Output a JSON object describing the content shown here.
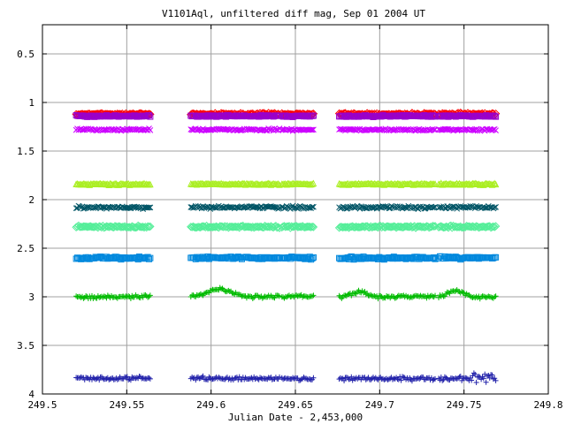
{
  "chart_data": {
    "type": "scatter",
    "title": "V1101Aql, unfiltered diff mag, Sep 01 2004 UT",
    "xlabel": "Julian Date - 2,453,000",
    "ylabel": "",
    "xlim": [
      249.5,
      249.8
    ],
    "ylim": [
      4.0,
      0.2
    ],
    "y_inverted": true,
    "grid": true,
    "legend": "none",
    "x_ticks": [
      "249.5",
      "249.55",
      "249.6",
      "249.65",
      "249.7",
      "249.75",
      "249.8"
    ],
    "x_tick_values": [
      249.5,
      249.55,
      249.6,
      249.65,
      249.7,
      249.75,
      249.8
    ],
    "y_ticks": [
      "0.5",
      "1",
      "1.5",
      "2",
      "2.5",
      "3",
      "3.5",
      "4"
    ],
    "y_tick_values": [
      0.5,
      1.0,
      1.5,
      2.0,
      2.5,
      3.0,
      3.5,
      4.0
    ],
    "observation_segments": [
      [
        249.52,
        249.564
      ],
      [
        249.588,
        249.641
      ],
      [
        249.642,
        249.661
      ],
      [
        249.676,
        249.733
      ],
      [
        249.735,
        249.769
      ]
    ],
    "series": [
      {
        "color": "#ff0000",
        "marker": "diamond",
        "mean": 1.12,
        "scatter": 0.015
      },
      {
        "color": "#9900cc",
        "marker": "square",
        "mean": 1.14,
        "scatter": 0.012
      },
      {
        "color": "#cc00ff",
        "marker": "x",
        "mean": 1.28,
        "scatter": 0.015
      },
      {
        "color": "#aaee22",
        "marker": "triangle",
        "mean": 1.84,
        "scatter": 0.012
      },
      {
        "color": "#005566",
        "marker": "x",
        "mean": 2.08,
        "scatter": 0.02
      },
      {
        "color": "#55ee99",
        "marker": "diamond",
        "mean": 2.28,
        "scatter": 0.015
      },
      {
        "color": "#0088dd",
        "marker": "square",
        "mean": 2.6,
        "scatter": 0.02
      },
      {
        "color": "#00bb00",
        "marker": "plus",
        "mean": 3.0,
        "scatter": 0.025
      },
      {
        "color": "#2222aa",
        "marker": "plus",
        "mean": 3.84,
        "scatter": 0.03
      }
    ]
  }
}
